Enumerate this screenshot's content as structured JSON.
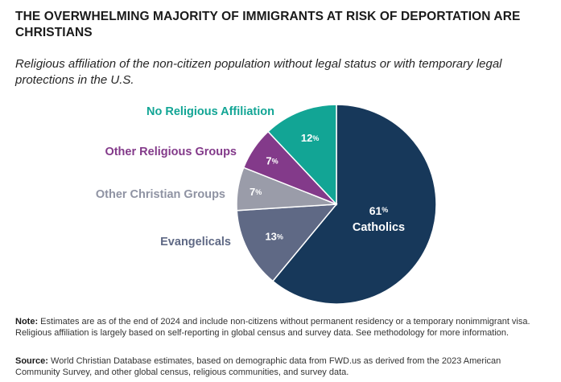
{
  "title": "THE OVERWHELMING MAJORITY OF IMMIGRANTS AT RISK OF DEPORTATION ARE CHRISTIANS",
  "subtitle": "Religious affiliation of the non-citizen population without legal status or with temporary legal protections in the U.S.",
  "note": {
    "label": "Note:",
    "text": "Estimates are as of the end of 2024 and include non-citizens without permanent residency or a temporary nonimmigrant visa. Religious affiliation is largely based on self-reporting in global census and survey data. See methodology for more information."
  },
  "source": {
    "label": "Source:",
    "text": "World Christian Database estimates, based on demographic data from FWD.us as derived from the 2023 American Community Survey, and other global census, religious communities, and survey data."
  },
  "chart_data": {
    "type": "pie",
    "start_angle_deg": 0,
    "direction": "clockwise",
    "slices": [
      {
        "label": "Catholics",
        "value": 61,
        "value_label": "61",
        "color": "#17385a",
        "label_position": "inside"
      },
      {
        "label": "Evangelicals",
        "value": 13,
        "value_label": "13",
        "color": "#5f6985",
        "label_position": "outside-left"
      },
      {
        "label": "Other Christian Groups",
        "value": 7,
        "value_label": "7",
        "color": "#9a9ca9",
        "label_position": "outside-left"
      },
      {
        "label": "Other Religious Groups",
        "value": 7,
        "value_label": "7",
        "color": "#833a8a",
        "label_position": "outside-left"
      },
      {
        "label": "No Religious Affiliation",
        "value": 12,
        "value_label": "12",
        "color": "#12a595",
        "label_position": "outside-left"
      }
    ],
    "unit": "%"
  }
}
